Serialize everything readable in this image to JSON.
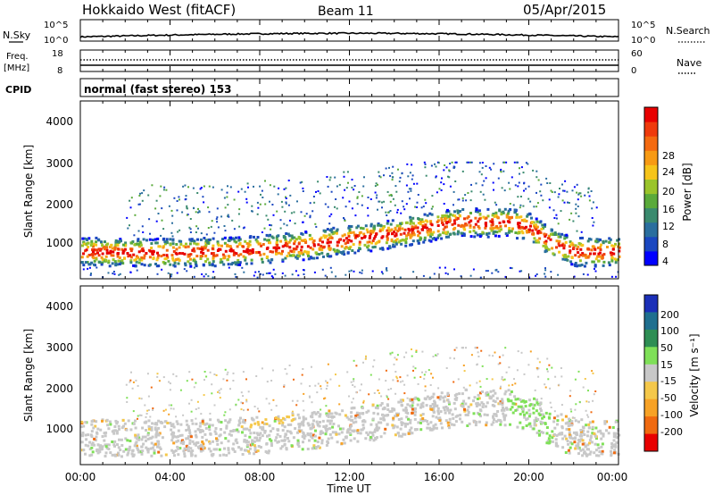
{
  "header": {
    "title": "Hokkaido West (fitACF)",
    "beam": "Beam 11",
    "date": "05/Apr/2015"
  },
  "params": {
    "nsky_label": "N.Sky",
    "nsearch_label": "N.Search",
    "freq_label_1": "Freq.",
    "freq_label_2": "[MHz]",
    "nave_label": "Nave",
    "cpid_label": "CPID",
    "cpid_text": "normal (fast stereo) 153",
    "noise_ticks": [
      "10^5",
      "10^0"
    ],
    "freq_ticks": [
      "18",
      "8"
    ],
    "nave_ticks": [
      "60",
      "0"
    ]
  },
  "chart_data": [
    {
      "type": "heatmap",
      "panel": "power",
      "ylabel": "Slant Range [km]",
      "yticks": [
        "4000",
        "3000",
        "2000",
        "1000"
      ],
      "ylim": [
        200,
        4600
      ],
      "colorbar": {
        "label": "Power [dB]",
        "ticks": [
          "28",
          "24",
          "20",
          "16",
          "12",
          "8",
          "4"
        ],
        "colors": [
          "#0000ff",
          "#1a47c0",
          "#2a6e9e",
          "#3a8a6e",
          "#5aaa3a",
          "#9ac42a",
          "#f6c41a",
          "#f79a14",
          "#f46a10",
          "#ef3a0c",
          "#e80000"
        ]
      },
      "bands": [
        {
          "name": "main",
          "x": [
            0,
            2,
            4,
            6,
            8,
            10,
            12,
            14,
            16,
            17,
            18,
            19,
            20,
            21,
            22,
            23,
            24
          ],
          "y": [
            900,
            880,
            870,
            900,
            950,
            1050,
            1200,
            1350,
            1550,
            1650,
            1600,
            1650,
            1500,
            1100,
            900,
            880,
            900
          ]
        }
      ]
    },
    {
      "type": "heatmap",
      "panel": "velocity",
      "ylabel": "Slant Range [km]",
      "yticks": [
        "4000",
        "3000",
        "2000",
        "1000"
      ],
      "ylim": [
        200,
        4600
      ],
      "colorbar": {
        "label": "Velocity [m s⁻¹]",
        "ticks": [
          "200",
          "100",
          "50",
          "15",
          "-15",
          "-50",
          "-100",
          "-200"
        ],
        "colors": [
          "#1b2fb8",
          "#1f6f8f",
          "#2e8e54",
          "#7fe058",
          "#c8c8c8",
          "#f5c84a",
          "#f7a226",
          "#f06a10",
          "#e80000"
        ]
      }
    }
  ],
  "xaxis": {
    "label": "Time UT",
    "ticks": [
      "00:00",
      "04:00",
      "08:00",
      "12:00",
      "16:00",
      "20:00",
      "00:00"
    ],
    "xlim": [
      0,
      24
    ]
  }
}
